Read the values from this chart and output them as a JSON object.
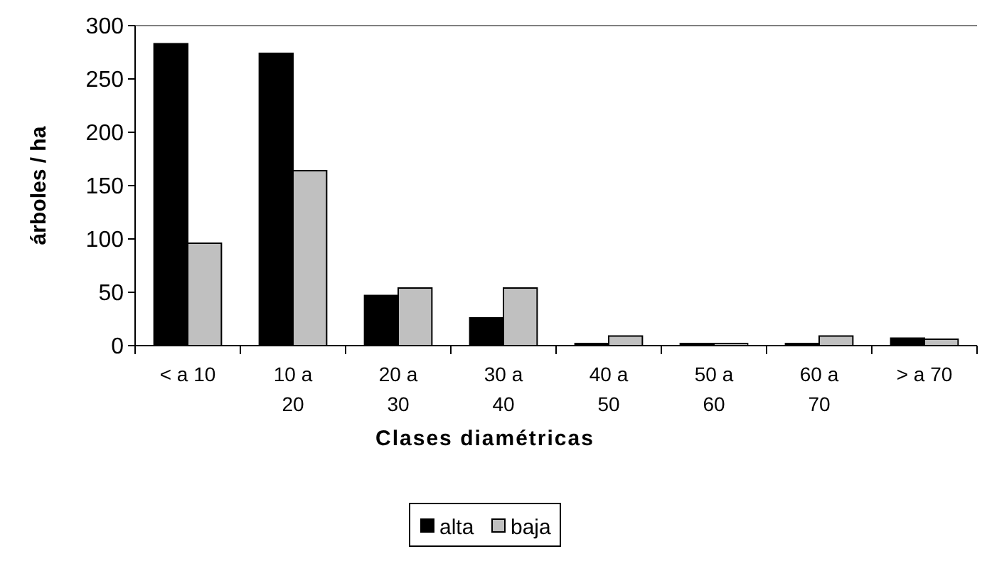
{
  "chart_data": {
    "type": "bar",
    "xlabel": "Clases diamétricas",
    "ylabel": "árboles / ha",
    "categories": [
      "< a 10",
      "10 a 20",
      "20 a 30",
      "30 a 40",
      "40 a 50",
      "50 a 60",
      "60 a 70",
      "> a 70"
    ],
    "series": [
      {
        "name": "alta",
        "color": "#000000",
        "values": [
          283,
          274,
          47,
          26,
          2,
          2,
          2,
          7
        ]
      },
      {
        "name": "baja",
        "color": "#c0c0c0",
        "values": [
          96,
          164,
          54,
          54,
          9,
          2,
          9,
          6
        ]
      }
    ],
    "ylim": [
      0,
      300
    ],
    "yticks": [
      0,
      50,
      100,
      150,
      200,
      250,
      300
    ],
    "legend": "bottom"
  }
}
